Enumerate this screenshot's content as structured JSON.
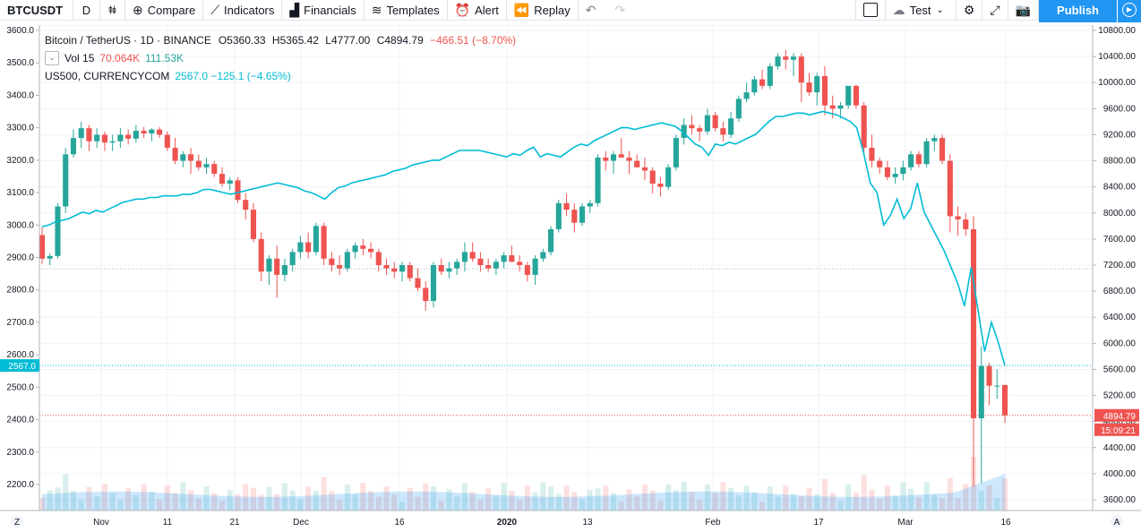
{
  "toolbar": {
    "symbol": "BTCUSDT",
    "interval": "D",
    "compare_label": "Compare",
    "indicators_label": "Indicators",
    "financials_label": "Financials",
    "templates_label": "Templates",
    "alert_label": "Alert",
    "replay_label": "Replay",
    "layout_name": "Test",
    "publish_label": "Publish"
  },
  "legend": {
    "title": "Bitcoin / TetherUS · 1D · BINANCE",
    "ohlc_o": "O5360.33",
    "ohlc_h": "H5365.42",
    "ohlc_l": "L4777.00",
    "ohlc_c": "C4894.79",
    "change": "−466.51 (−8.70%)",
    "vol_label": "Vol 15",
    "vol_value": "70.064K",
    "vol_ma": "111.53K",
    "compare_label": "US500, CURRENCYCOM",
    "compare_value": "2567.0 −125.1 (−4.65%)"
  },
  "axes": {
    "left_ticks": [
      "3600.0",
      "3500.0",
      "3400.0",
      "3300.0",
      "3200.0",
      "3100.0",
      "3000.0",
      "2900.0",
      "2800.0",
      "2700.0",
      "2600.0",
      "2500.0",
      "2400.0",
      "2300.0",
      "2200.0"
    ],
    "right_ticks": [
      "10800.00",
      "10400.00",
      "10000.00",
      "9600.00",
      "9200.00",
      "8800.00",
      "8400.00",
      "8000.00",
      "7600.00",
      "7200.00",
      "6800.00",
      "6400.00",
      "6000.00",
      "5600.00",
      "5200.00",
      "4800.00",
      "4400.00",
      "4000.00",
      "3600.00"
    ],
    "time_labels": [
      "Nov",
      "11",
      "21",
      "Dec",
      "16",
      "2020",
      "13",
      "Feb",
      "17",
      "Mar",
      "16"
    ],
    "left_marker": "2567.0",
    "price_marker": "4894.79",
    "countdown": "15:09:21",
    "left_corner": "Z",
    "right_corner": "A"
  },
  "colors": {
    "up": "#26a69a",
    "down": "#ef5350",
    "compare_line": "#00bcd4",
    "accent": "#2196f3"
  },
  "chart_data": {
    "type": "candlestick",
    "main_series": "BTCUSDT",
    "compare_series": "US500",
    "price_range_right": [
      3300,
      11000
    ],
    "price_range_left": [
      2150,
      3620
    ],
    "candles": [
      [
        7660,
        7780,
        7220,
        7300
      ],
      [
        7300,
        7380,
        7200,
        7340
      ],
      [
        7340,
        8150,
        7300,
        8100
      ],
      [
        8100,
        9000,
        8000,
        8900
      ],
      [
        8900,
        9280,
        8850,
        9150
      ],
      [
        9150,
        9400,
        9000,
        9300
      ],
      [
        9300,
        9350,
        8950,
        9100
      ],
      [
        9100,
        9300,
        9000,
        9200
      ],
      [
        9200,
        9250,
        8950,
        9080
      ],
      [
        9080,
        9200,
        8950,
        9100
      ],
      [
        9100,
        9300,
        9000,
        9200
      ],
      [
        9200,
        9280,
        9050,
        9140
      ],
      [
        9140,
        9350,
        9080,
        9260
      ],
      [
        9260,
        9320,
        9150,
        9220
      ],
      [
        9220,
        9300,
        9100,
        9280
      ],
      [
        9280,
        9320,
        9150,
        9200
      ],
      [
        9200,
        9250,
        8950,
        9000
      ],
      [
        9000,
        9150,
        8750,
        8800
      ],
      [
        8800,
        8950,
        8700,
        8900
      ],
      [
        8900,
        9000,
        8600,
        8800
      ],
      [
        8800,
        8900,
        8650,
        8700
      ],
      [
        8700,
        8850,
        8600,
        8750
      ],
      [
        8750,
        8800,
        8550,
        8600
      ],
      [
        8600,
        8700,
        8400,
        8450
      ],
      [
        8450,
        8550,
        8350,
        8500
      ],
      [
        8500,
        8550,
        8150,
        8200
      ],
      [
        8200,
        8300,
        7900,
        8050
      ],
      [
        8050,
        8150,
        7550,
        7600
      ],
      [
        7600,
        7700,
        6950,
        7100
      ],
      [
        7100,
        7350,
        6900,
        7300
      ],
      [
        7300,
        7500,
        6700,
        7050
      ],
      [
        7050,
        7300,
        6950,
        7200
      ],
      [
        7200,
        7450,
        7100,
        7400
      ],
      [
        7400,
        7650,
        7300,
        7550
      ],
      [
        7550,
        7700,
        7300,
        7400
      ],
      [
        7400,
        7850,
        7350,
        7800
      ],
      [
        7800,
        7850,
        7200,
        7300
      ],
      [
        7300,
        7400,
        7100,
        7200
      ],
      [
        7200,
        7350,
        7050,
        7150
      ],
      [
        7150,
        7450,
        7100,
        7400
      ],
      [
        7400,
        7550,
        7300,
        7500
      ],
      [
        7500,
        7600,
        7350,
        7450
      ],
      [
        7450,
        7550,
        7300,
        7400
      ],
      [
        7400,
        7450,
        7100,
        7200
      ],
      [
        7200,
        7300,
        7050,
        7150
      ],
      [
        7150,
        7250,
        7000,
        7100
      ],
      [
        7100,
        7250,
        6950,
        7200
      ],
      [
        7200,
        7250,
        6950,
        7000
      ],
      [
        7000,
        7150,
        6800,
        6850
      ],
      [
        6850,
        6950,
        6500,
        6650
      ],
      [
        6650,
        7250,
        6550,
        7200
      ],
      [
        7200,
        7300,
        7050,
        7100
      ],
      [
        7100,
        7250,
        7000,
        7150
      ],
      [
        7150,
        7300,
        7050,
        7250
      ],
      [
        7250,
        7550,
        7100,
        7400
      ],
      [
        7400,
        7550,
        7250,
        7300
      ],
      [
        7300,
        7400,
        7100,
        7200
      ],
      [
        7200,
        7300,
        7100,
        7150
      ],
      [
        7150,
        7300,
        7050,
        7250
      ],
      [
        7250,
        7400,
        7150,
        7350
      ],
      [
        7350,
        7500,
        7250,
        7250
      ],
      [
        7250,
        7350,
        7100,
        7200
      ],
      [
        7200,
        7250,
        6950,
        7050
      ],
      [
        7050,
        7350,
        6900,
        7300
      ],
      [
        7300,
        7450,
        7250,
        7400
      ],
      [
        7400,
        7800,
        7350,
        7750
      ],
      [
        7750,
        8200,
        7700,
        8150
      ],
      [
        8150,
        8300,
        7950,
        8050
      ],
      [
        8050,
        8150,
        7700,
        7850
      ],
      [
        7850,
        8150,
        7800,
        8100
      ],
      [
        8100,
        8200,
        8000,
        8150
      ],
      [
        8150,
        8900,
        8100,
        8850
      ],
      [
        8850,
        8950,
        8650,
        8800
      ],
      [
        8800,
        8950,
        8600,
        8900
      ],
      [
        8900,
        9150,
        8850,
        8850
      ],
      [
        8850,
        8950,
        8600,
        8800
      ],
      [
        8800,
        8900,
        8700,
        8700
      ],
      [
        8700,
        8850,
        8500,
        8650
      ],
      [
        8650,
        8700,
        8300,
        8450
      ],
      [
        8450,
        8550,
        8250,
        8400
      ],
      [
        8400,
        8750,
        8350,
        8700
      ],
      [
        8700,
        9200,
        8650,
        9150
      ],
      [
        9150,
        9450,
        9050,
        9350
      ],
      [
        9350,
        9500,
        9200,
        9300
      ],
      [
        9300,
        9350,
        9100,
        9250
      ],
      [
        9250,
        9600,
        9200,
        9500
      ],
      [
        9500,
        9550,
        9250,
        9300
      ],
      [
        9300,
        9400,
        9100,
        9200
      ],
      [
        9200,
        9550,
        9150,
        9450
      ],
      [
        9450,
        9800,
        9400,
        9750
      ],
      [
        9750,
        10000,
        9700,
        9850
      ],
      [
        9850,
        10100,
        9800,
        10050
      ],
      [
        10050,
        10200,
        9900,
        9950
      ],
      [
        9950,
        10300,
        9900,
        10250
      ],
      [
        10250,
        10450,
        10200,
        10400
      ],
      [
        10400,
        10500,
        10200,
        10350
      ],
      [
        10350,
        10450,
        10100,
        10400
      ],
      [
        10400,
        10450,
        9700,
        10000
      ],
      [
        10000,
        10150,
        9800,
        9850
      ],
      [
        9850,
        10150,
        9650,
        10100
      ],
      [
        10100,
        10250,
        9500,
        9650
      ],
      [
        9650,
        9800,
        9450,
        9600
      ],
      [
        9600,
        9700,
        9450,
        9650
      ],
      [
        9650,
        9900,
        9600,
        9950
      ],
      [
        9950,
        9970,
        9600,
        9650
      ],
      [
        9650,
        9700,
        8900,
        9000
      ],
      [
        9000,
        9200,
        8700,
        8800
      ],
      [
        8800,
        8850,
        8600,
        8700
      ],
      [
        8700,
        8800,
        8500,
        8550
      ],
      [
        8550,
        8700,
        8450,
        8600
      ],
      [
        8600,
        8800,
        8500,
        8700
      ],
      [
        8700,
        8950,
        8650,
        8900
      ],
      [
        8900,
        8950,
        8700,
        8750
      ],
      [
        8750,
        9150,
        8700,
        9100
      ],
      [
        9100,
        9200,
        8950,
        9150
      ],
      [
        9150,
        9200,
        8750,
        8800
      ],
      [
        8800,
        8900,
        7700,
        7950
      ],
      [
        7950,
        8100,
        7650,
        7900
      ],
      [
        7900,
        8000,
        7650,
        7750
      ],
      [
        7750,
        7950,
        3800,
        4850
      ],
      [
        4850,
        5950,
        3850,
        5650
      ],
      [
        5650,
        5700,
        5050,
        5350
      ],
      [
        5350,
        5600,
        5150,
        5350
      ],
      [
        5360,
        5365,
        4777,
        4895
      ]
    ],
    "compare_values": [
      2995,
      3000,
      3010,
      3015,
      3020,
      3030,
      3040,
      3035,
      3045,
      3040,
      3050,
      3060,
      3070,
      3075,
      3080,
      3080,
      3085,
      3085,
      3090,
      3090,
      3090,
      3095,
      3095,
      3100,
      3110,
      3110,
      3105,
      3100,
      3095,
      3100,
      3105,
      3110,
      3115,
      3120,
      3125,
      3130,
      3125,
      3120,
      3115,
      3105,
      3100,
      3090,
      3080,
      3100,
      3115,
      3120,
      3130,
      3135,
      3140,
      3145,
      3150,
      3155,
      3165,
      3170,
      3175,
      3185,
      3190,
      3195,
      3200,
      3200,
      3210,
      3220,
      3230,
      3230,
      3230,
      3230,
      3225,
      3220,
      3215,
      3210,
      3220,
      3215,
      3230,
      3240,
      3210,
      3220,
      3215,
      3210,
      3225,
      3240,
      3250,
      3245,
      3260,
      3270,
      3280,
      3290,
      3300,
      3300,
      3295,
      3300,
      3305,
      3310,
      3315,
      3310,
      3305,
      3290,
      3270,
      3250,
      3240,
      3215,
      3250,
      3245,
      3255,
      3250,
      3260,
      3270,
      3280,
      3300,
      3320,
      3335,
      3335,
      3340,
      3345,
      3345,
      3340,
      3345,
      3350,
      3345,
      3340,
      3330,
      3320,
      3300,
      3225,
      3130,
      3100,
      3000,
      3030,
      3080,
      3020,
      3050,
      3130,
      3040,
      3000,
      2960,
      2920,
      2870,
      2820,
      2750,
      2870,
      2740,
      2610,
      2700,
      2640,
      2567
    ],
    "volume_ma": [
      0.55
    ]
  }
}
